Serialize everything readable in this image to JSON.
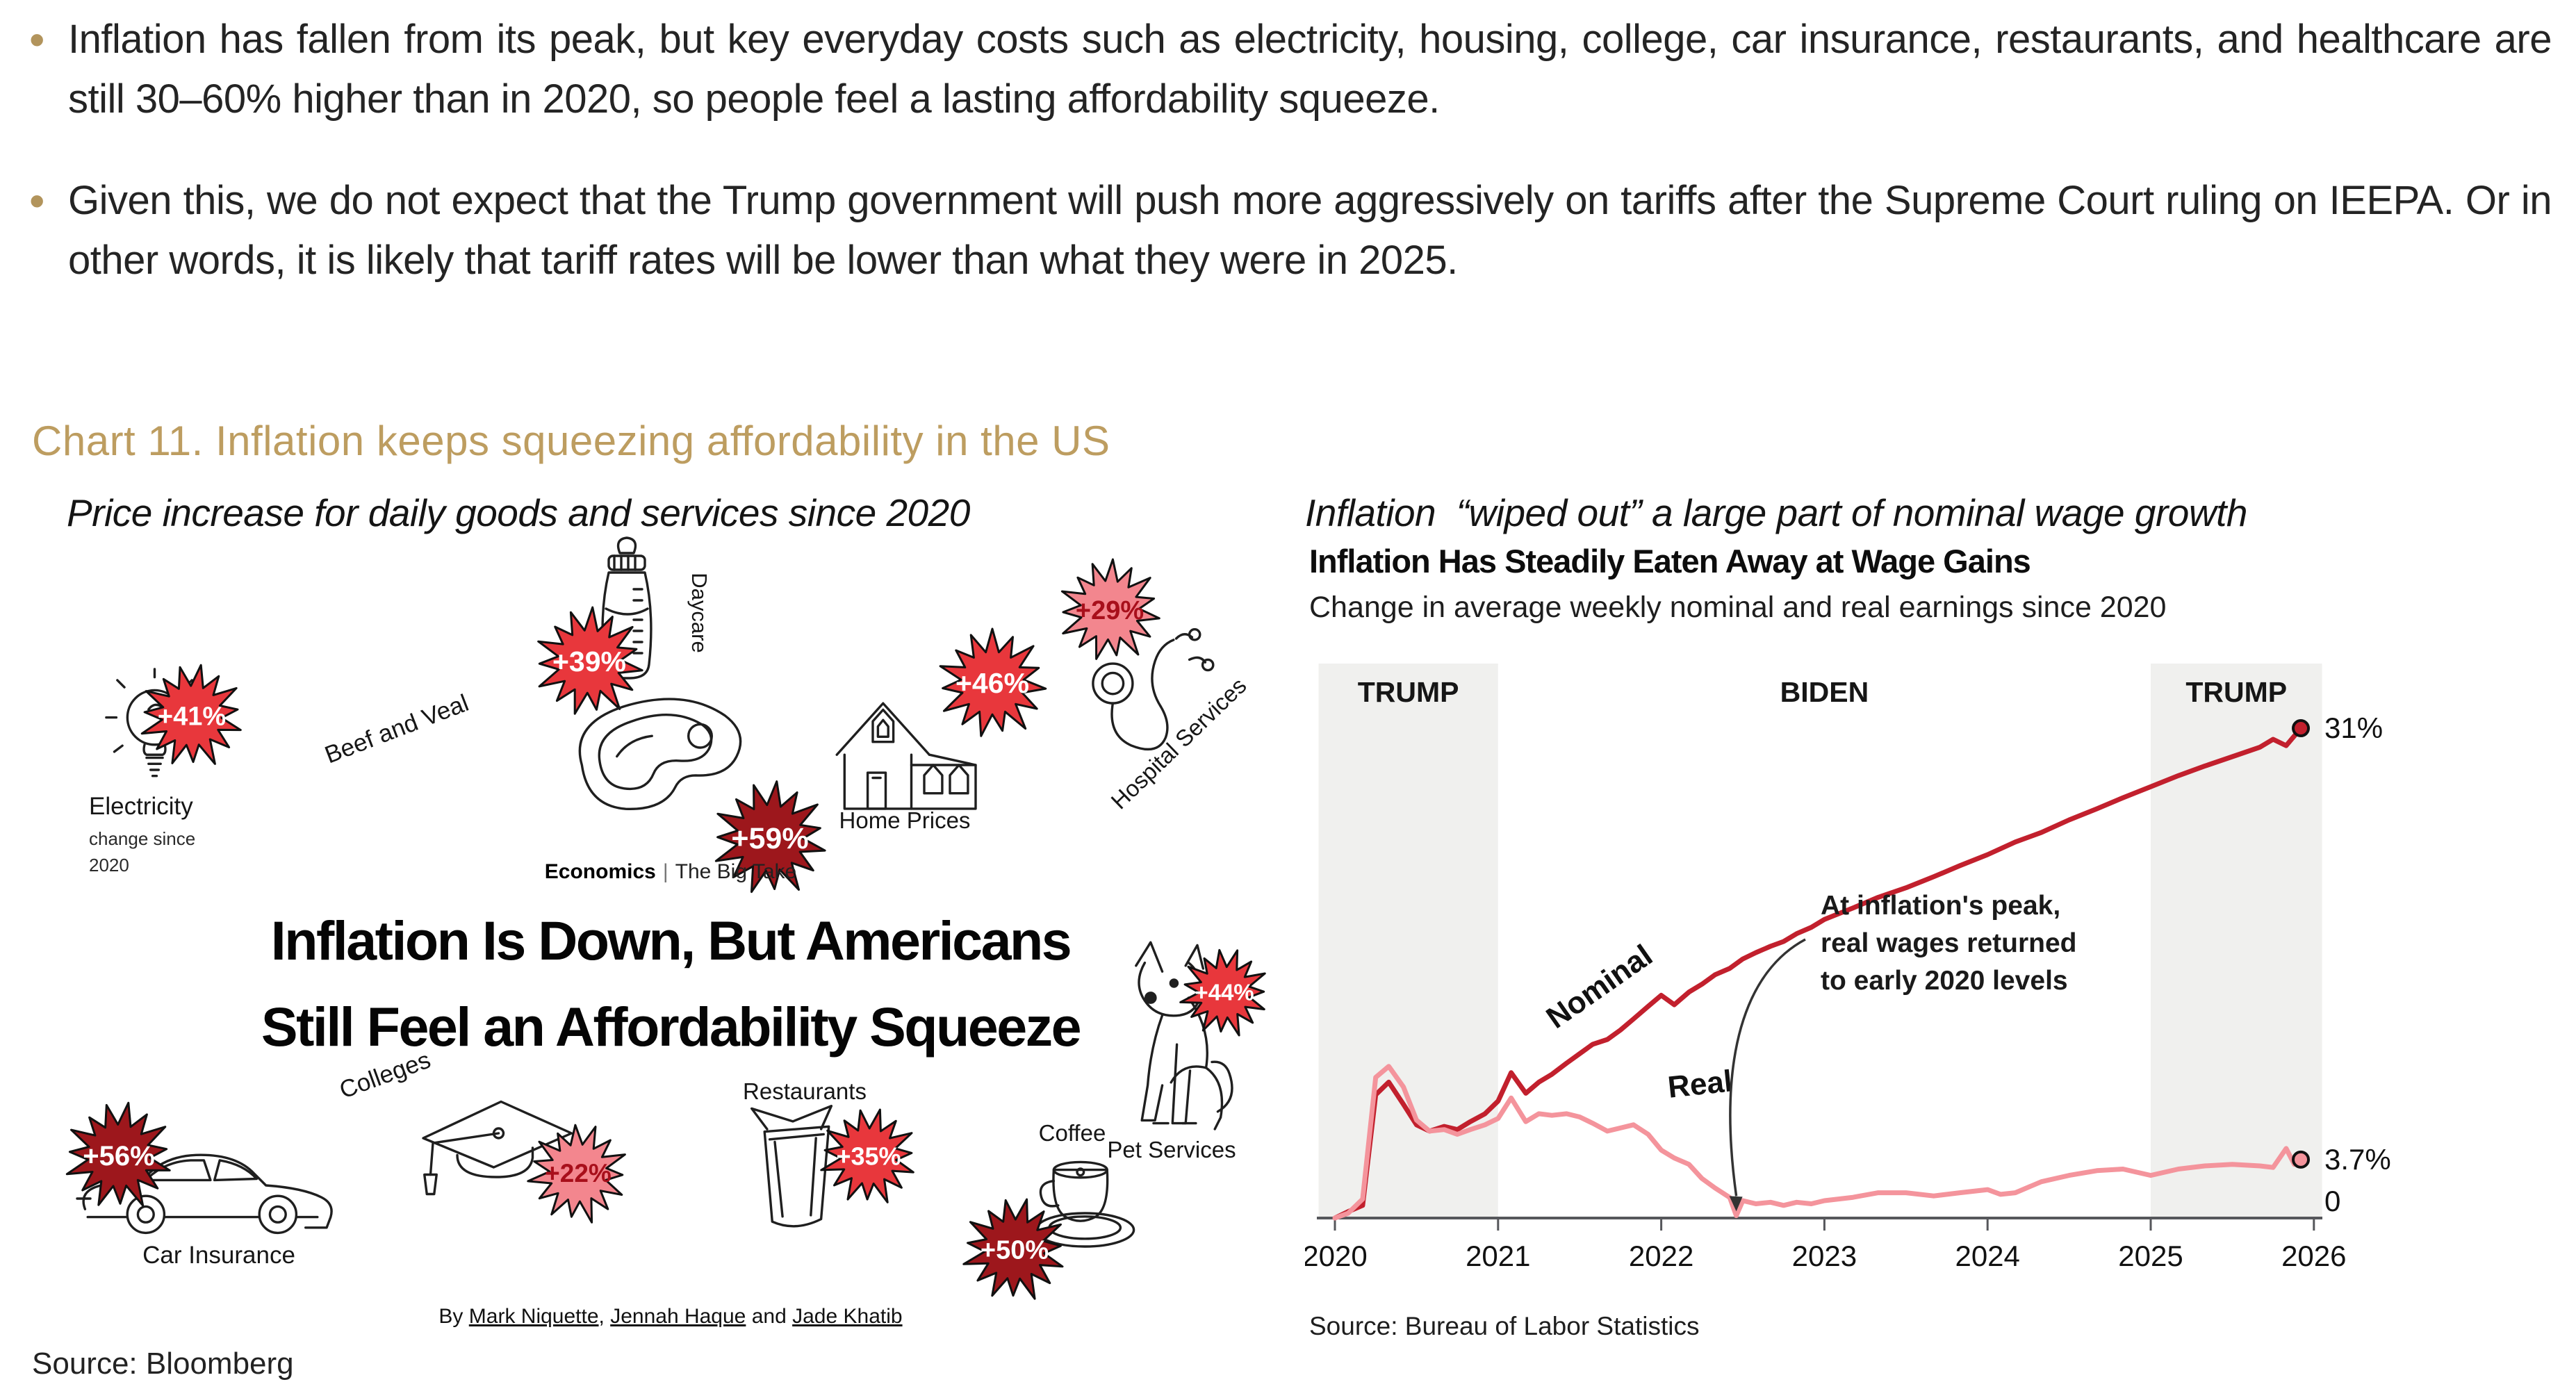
{
  "bullets": {
    "marker": "•",
    "marker_color": "#b2945c",
    "items": [
      "Inflation has fallen from its peak, but key everyday costs such as electricity, housing, college, car insurance, restaurants, and healthcare are still 30–60% higher than in 2020, so people feel a lasting affordability squeeze.",
      "Given this, we do not expect that the Trump government will push more aggressively on tariffs after the Supreme Court ruling on IEEPA. Or in other words, it is likely that tariff rates will be lower than what they were in 2025."
    ]
  },
  "chart_section": {
    "title": "Chart 11. Inflation keeps squeezing affordability in the US",
    "title_color": "#bd9d60"
  },
  "left_panel": {
    "subtitle": "Price increase for daily goods and services since 2020",
    "brand": {
      "section": "Economics",
      "divider": "|",
      "name": "The Big Take"
    },
    "headline": {
      "line1": "Inflation Is Down, But Americans",
      "line2": "Still Feel an Affordability Squeeze"
    },
    "byline": {
      "prefix": "By",
      "authors": [
        "Mark Niquette",
        "Jennah Haque",
        "Jade Khatib"
      ],
      "sep": ", ",
      "last_sep": " and "
    },
    "unit_note": [
      "change since",
      "2020"
    ],
    "burst_styles": {
      "red": {
        "fill": "#e8373c",
        "text": "#ffffff"
      },
      "dark": {
        "fill": "#9d171c",
        "text": "#ffffff"
      },
      "pink": {
        "fill": "#f3868e",
        "text": "#a80f1b"
      }
    },
    "items": [
      {
        "id": "electricity",
        "label": "Electricity",
        "pct": "+41%",
        "style": "red"
      },
      {
        "id": "daycare",
        "label": "Daycare",
        "pct": "+39%",
        "style": "red"
      },
      {
        "id": "beef",
        "label": "Beef and Veal",
        "pct": "+59%",
        "style": "dark"
      },
      {
        "id": "home",
        "label": "Home Prices",
        "pct": "+46%",
        "style": "red"
      },
      {
        "id": "hospital",
        "label": "Hospital Services",
        "pct": "+29%",
        "style": "pink"
      },
      {
        "id": "colleges",
        "label": "Colleges",
        "pct": "+22%",
        "style": "pink"
      },
      {
        "id": "car",
        "label": "Car Insurance",
        "pct": "+56%",
        "style": "dark"
      },
      {
        "id": "restaurants",
        "label": "Restaurants",
        "pct": "+35%",
        "style": "red"
      },
      {
        "id": "coffee",
        "label": "Coffee",
        "pct": "+50%",
        "style": "dark"
      },
      {
        "id": "pet",
        "label": "Pet Services",
        "pct": "+44%",
        "style": "red"
      }
    ]
  },
  "right_panel": {
    "subtitle": "Inflation  “wiped out” a large part of nominal wage growth",
    "title": "Inflation Has Steadily Eaten Away at Wage Gains",
    "chart_subtitle": "Change in average weekly nominal and real earnings since 2020",
    "source": "Source: Bureau of Labor Statistics"
  },
  "slide_source": "Source: Bloomberg",
  "chart_data": [
    {
      "type": "pictogram",
      "title": "Price increase for daily goods and services since 2020",
      "unit": "% change since 2020",
      "categories": [
        "Electricity",
        "Daycare",
        "Beef and Veal",
        "Home Prices",
        "Hospital Services",
        "Colleges",
        "Car Insurance",
        "Restaurants",
        "Coffee",
        "Pet Services"
      ],
      "values": [
        41,
        39,
        59,
        46,
        29,
        22,
        56,
        35,
        50,
        44
      ]
    },
    {
      "type": "line",
      "title": "Inflation Has Steadily Eaten Away at Wage Gains",
      "subtitle": "Change in average weekly nominal and real earnings since 2020",
      "xlim": [
        2019.9,
        2026.05
      ],
      "ylim": [
        -0.5,
        35
      ],
      "x_ticks": [
        2020,
        2021,
        2022,
        2023,
        2024,
        2025,
        2026
      ],
      "grid": false,
      "zero_label": "0",
      "bands": [
        {
          "label": "TRUMP",
          "from": 2019.9,
          "to": 2021.0,
          "shaded": true
        },
        {
          "label": "BIDEN",
          "from": 2021.0,
          "to": 2025.0,
          "shaded": false
        },
        {
          "label": "TRUMP",
          "from": 2025.0,
          "to": 2026.05,
          "shaded": true
        }
      ],
      "annotation": {
        "lines": [
          "At inflation's peak,",
          "real wages returned",
          "to early 2020 levels"
        ],
        "arrow_to": [
          2022.46,
          0.6
        ]
      },
      "series": [
        {
          "name": "Nominal",
          "color": "#c2202d",
          "end_label": "31%",
          "points": [
            [
              2020.0,
              0
            ],
            [
              2020.08,
              0.4
            ],
            [
              2020.17,
              0.8
            ],
            [
              2020.25,
              7.8
            ],
            [
              2020.33,
              8.6
            ],
            [
              2020.42,
              7.2
            ],
            [
              2020.5,
              5.9
            ],
            [
              2020.58,
              5.5
            ],
            [
              2020.67,
              5.8
            ],
            [
              2020.75,
              5.6
            ],
            [
              2020.83,
              6.1
            ],
            [
              2020.92,
              6.6
            ],
            [
              2021.0,
              7.4
            ],
            [
              2021.08,
              9.2
            ],
            [
              2021.17,
              7.9
            ],
            [
              2021.25,
              8.6
            ],
            [
              2021.33,
              9.1
            ],
            [
              2021.42,
              9.8
            ],
            [
              2021.5,
              10.4
            ],
            [
              2021.58,
              11.0
            ],
            [
              2021.67,
              11.3
            ],
            [
              2021.75,
              11.9
            ],
            [
              2021.83,
              12.6
            ],
            [
              2021.92,
              13.4
            ],
            [
              2022.0,
              14.1
            ],
            [
              2022.08,
              13.5
            ],
            [
              2022.17,
              14.3
            ],
            [
              2022.25,
              14.8
            ],
            [
              2022.33,
              15.4
            ],
            [
              2022.42,
              15.8
            ],
            [
              2022.5,
              16.4
            ],
            [
              2022.58,
              16.8
            ],
            [
              2022.67,
              17.2
            ],
            [
              2022.75,
              17.5
            ],
            [
              2022.83,
              18.0
            ],
            [
              2022.92,
              18.4
            ],
            [
              2023.0,
              18.9
            ],
            [
              2023.17,
              19.6
            ],
            [
              2023.33,
              20.3
            ],
            [
              2023.5,
              20.9
            ],
            [
              2023.67,
              21.6
            ],
            [
              2023.83,
              22.3
            ],
            [
              2024.0,
              23.0
            ],
            [
              2024.17,
              23.8
            ],
            [
              2024.33,
              24.4
            ],
            [
              2024.5,
              25.2
            ],
            [
              2024.67,
              25.9
            ],
            [
              2024.83,
              26.6
            ],
            [
              2025.0,
              27.3
            ],
            [
              2025.17,
              28.0
            ],
            [
              2025.33,
              28.6
            ],
            [
              2025.5,
              29.2
            ],
            [
              2025.67,
              29.8
            ],
            [
              2025.75,
              30.3
            ],
            [
              2025.83,
              29.9
            ],
            [
              2025.92,
              31.0
            ]
          ]
        },
        {
          "name": "Real",
          "color": "#f4949c",
          "end_label": "3.7%",
          "points": [
            [
              2020.0,
              0
            ],
            [
              2020.08,
              0.3
            ],
            [
              2020.17,
              1.2
            ],
            [
              2020.25,
              8.9
            ],
            [
              2020.33,
              9.6
            ],
            [
              2020.42,
              8.3
            ],
            [
              2020.5,
              6.2
            ],
            [
              2020.58,
              5.5
            ],
            [
              2020.67,
              5.6
            ],
            [
              2020.75,
              5.3
            ],
            [
              2020.83,
              5.6
            ],
            [
              2020.92,
              5.9
            ],
            [
              2021.0,
              6.3
            ],
            [
              2021.08,
              7.6
            ],
            [
              2021.17,
              6.1
            ],
            [
              2021.25,
              6.6
            ],
            [
              2021.33,
              6.5
            ],
            [
              2021.42,
              6.6
            ],
            [
              2021.5,
              6.4
            ],
            [
              2021.58,
              6.0
            ],
            [
              2021.67,
              5.5
            ],
            [
              2021.75,
              5.7
            ],
            [
              2021.83,
              5.9
            ],
            [
              2021.92,
              5.3
            ],
            [
              2022.0,
              4.3
            ],
            [
              2022.08,
              3.8
            ],
            [
              2022.17,
              3.4
            ],
            [
              2022.25,
              2.5
            ],
            [
              2022.33,
              1.9
            ],
            [
              2022.42,
              1.3
            ],
            [
              2022.46,
              0.15
            ],
            [
              2022.5,
              1.1
            ],
            [
              2022.58,
              0.9
            ],
            [
              2022.67,
              1.0
            ],
            [
              2022.75,
              0.8
            ],
            [
              2022.83,
              1.0
            ],
            [
              2022.92,
              0.9
            ],
            [
              2023.0,
              1.1
            ],
            [
              2023.17,
              1.3
            ],
            [
              2023.33,
              1.6
            ],
            [
              2023.5,
              1.6
            ],
            [
              2023.67,
              1.4
            ],
            [
              2023.83,
              1.6
            ],
            [
              2024.0,
              1.8
            ],
            [
              2024.08,
              1.5
            ],
            [
              2024.17,
              1.6
            ],
            [
              2024.33,
              2.3
            ],
            [
              2024.5,
              2.7
            ],
            [
              2024.67,
              3.0
            ],
            [
              2024.83,
              3.1
            ],
            [
              2025.0,
              2.7
            ],
            [
              2025.17,
              3.1
            ],
            [
              2025.33,
              3.3
            ],
            [
              2025.5,
              3.4
            ],
            [
              2025.67,
              3.3
            ],
            [
              2025.75,
              3.2
            ],
            [
              2025.83,
              4.4
            ],
            [
              2025.88,
              3.4
            ],
            [
              2025.92,
              3.7
            ]
          ]
        }
      ]
    }
  ]
}
